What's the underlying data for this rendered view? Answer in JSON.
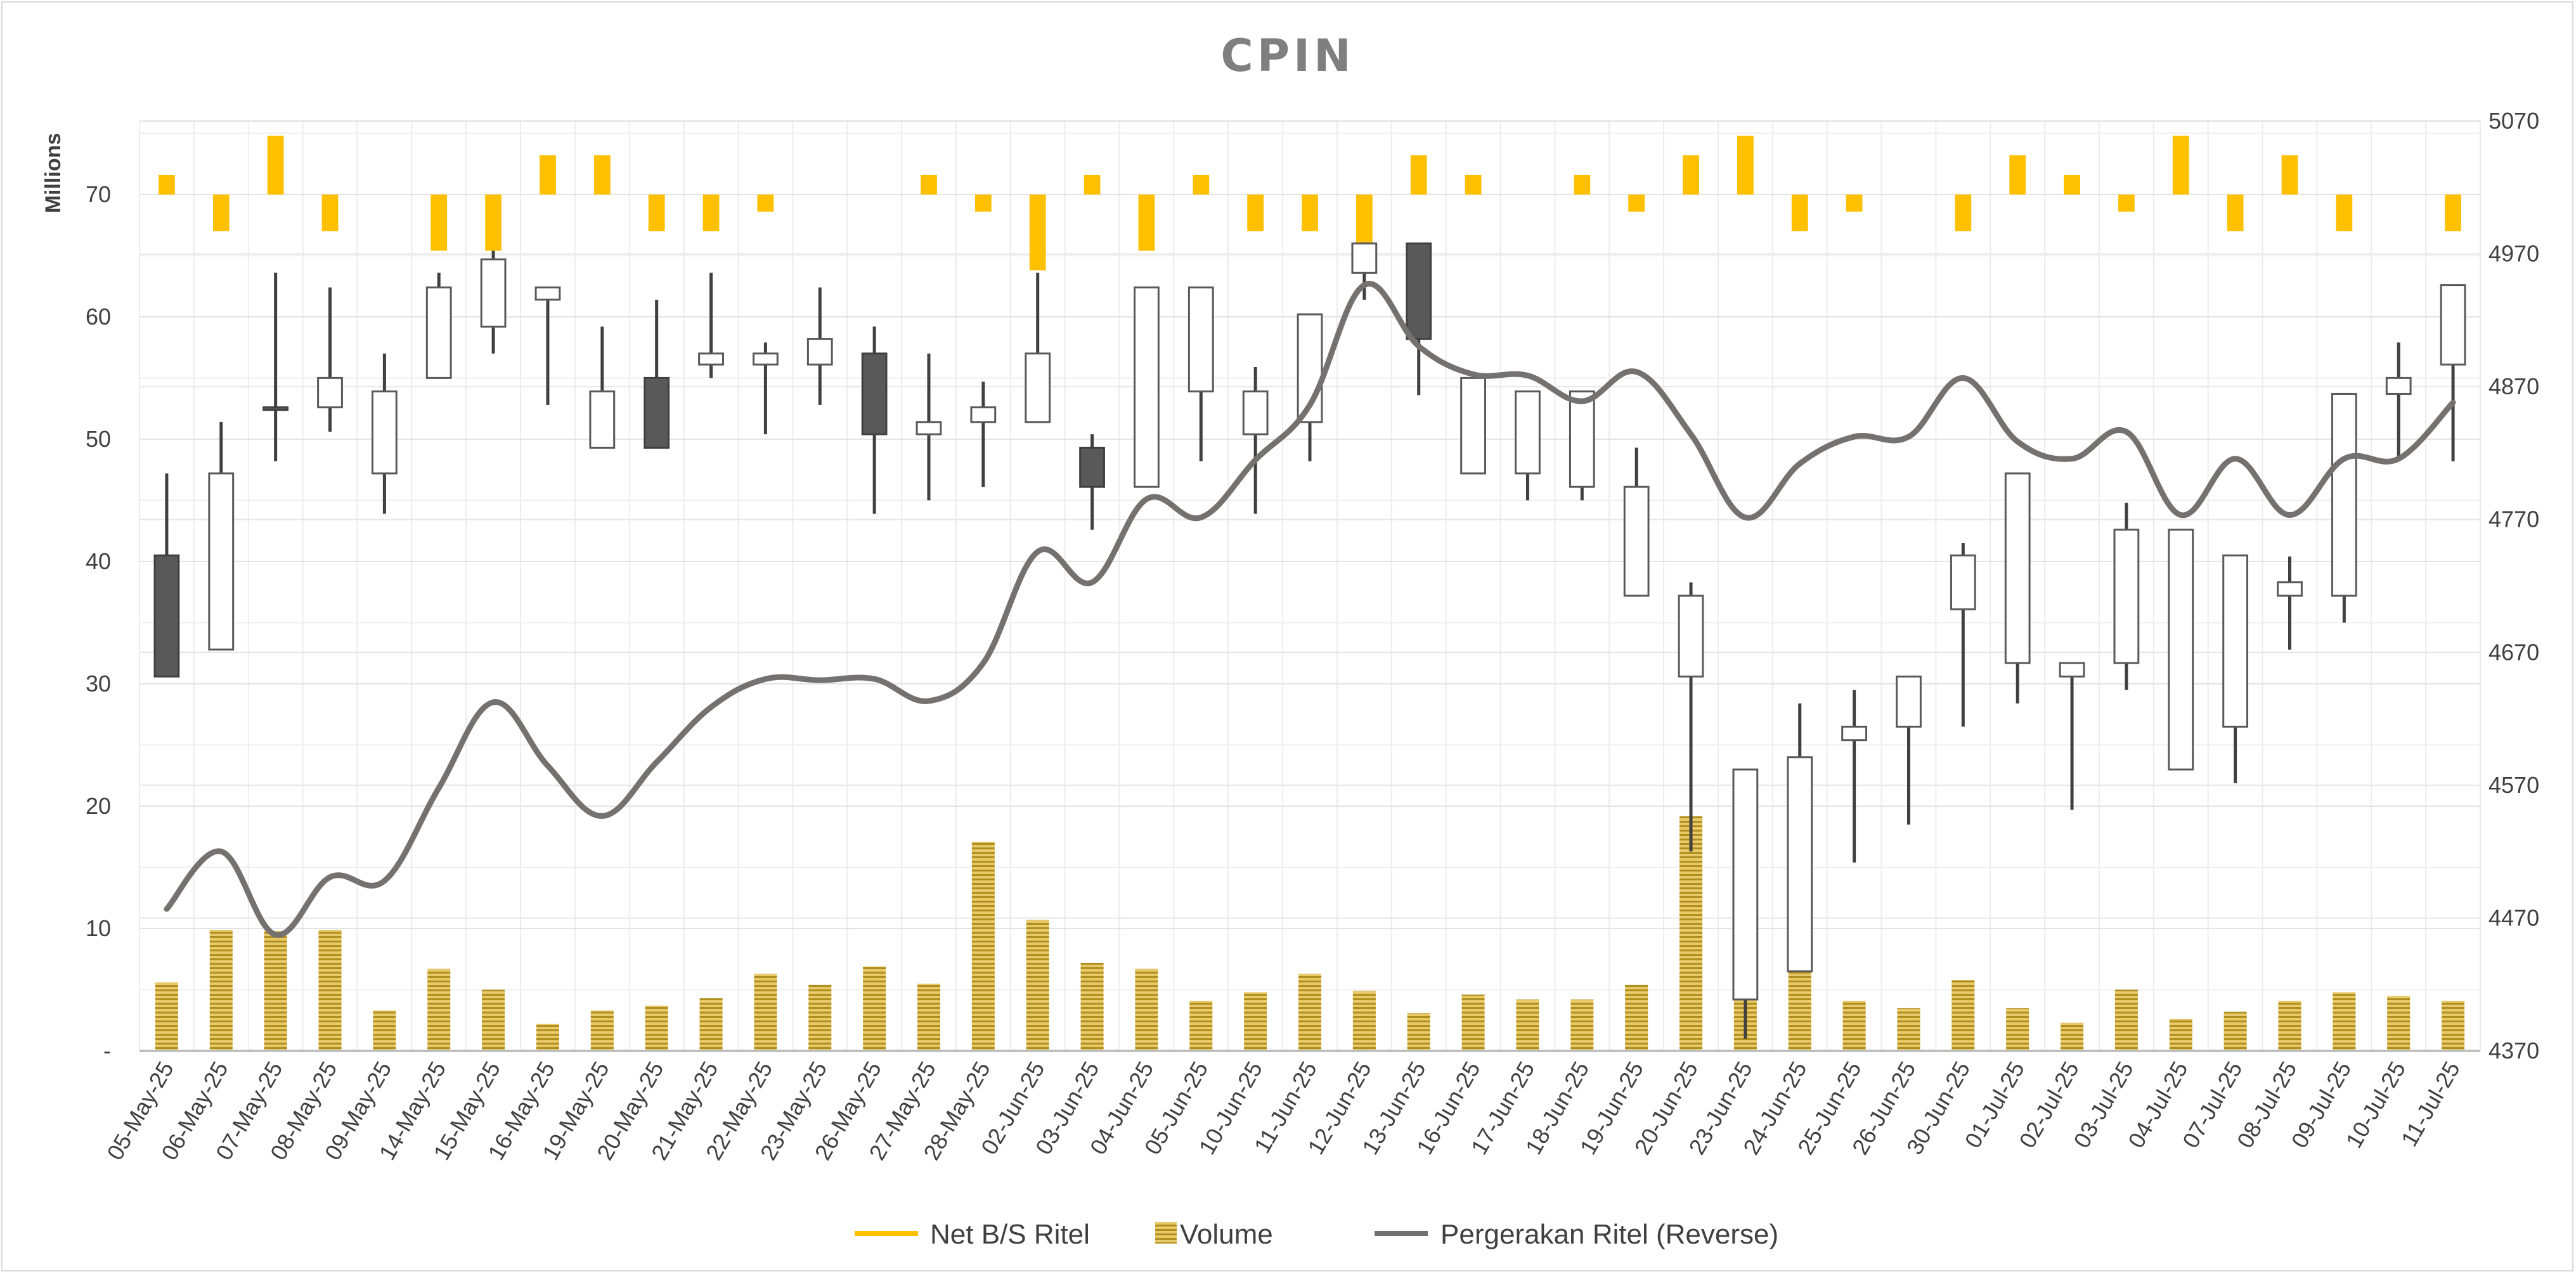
{
  "chart_data": {
    "type": "candlestick-combo",
    "title": "CPIN",
    "left_axis_unit": "Millions",
    "left_axis": {
      "min": 0,
      "max": 76,
      "ticks": [
        {
          "value": 0,
          "label": "-"
        },
        {
          "value": 10,
          "label": "10"
        },
        {
          "value": 20,
          "label": "20"
        },
        {
          "value": 30,
          "label": "30"
        },
        {
          "value": 40,
          "label": "40"
        },
        {
          "value": 50,
          "label": "50"
        },
        {
          "value": 60,
          "label": "60"
        },
        {
          "value": 70,
          "label": "70"
        }
      ]
    },
    "right_axis": {
      "min": 4370,
      "max": 5070,
      "ticks": [
        "4370",
        "4470",
        "4570",
        "4670",
        "4770",
        "4870",
        "4970",
        "5070"
      ]
    },
    "gridlines": true,
    "legend_position": "bottom",
    "colors": {
      "net_bs": "#ffc000",
      "volume": "#c9a227",
      "line": "#767171",
      "candle_down": "#595959",
      "candle_up": "#ffffff",
      "wick": "#404040"
    },
    "categories": [
      "05-May-25",
      "06-May-25",
      "07-May-25",
      "08-May-25",
      "09-May-25",
      "14-May-25",
      "15-May-25",
      "16-May-25",
      "19-May-25",
      "20-May-25",
      "21-May-25",
      "22-May-25",
      "23-May-25",
      "26-May-25",
      "27-May-25",
      "28-May-25",
      "02-Jun-25",
      "03-Jun-25",
      "04-Jun-25",
      "05-Jun-25",
      "10-Jun-25",
      "11-Jun-25",
      "12-Jun-25",
      "13-Jun-25",
      "16-Jun-25",
      "17-Jun-25",
      "18-Jun-25",
      "19-Jun-25",
      "20-Jun-25",
      "23-Jun-25",
      "24-Jun-25",
      "25-Jun-25",
      "26-Jun-25",
      "30-Jun-25",
      "01-Jul-25",
      "02-Jul-25",
      "03-Jul-25",
      "04-Jul-25",
      "07-Jul-25",
      "08-Jul-25",
      "09-Jul-25",
      "10-Jul-25",
      "11-Jul-25"
    ],
    "series": [
      {
        "name": "Net B/S Ritel",
        "type": "bar",
        "axis": "left",
        "baseline": 70,
        "values": [
          71.6,
          67,
          74.8,
          67,
          null,
          65.4,
          65.4,
          73.2,
          73.2,
          67,
          67,
          68.6,
          null,
          null,
          71.6,
          68.6,
          63.8,
          71.6,
          65.4,
          71.6,
          67,
          67,
          63.8,
          73.2,
          71.6,
          null,
          71.6,
          68.6,
          73.2,
          74.8,
          67,
          68.6,
          null,
          67,
          73.2,
          71.6,
          68.6,
          74.8,
          67,
          73.2,
          67,
          null,
          67
        ]
      },
      {
        "name": "Volume",
        "type": "bar",
        "axis": "left",
        "values": [
          5.6,
          9.9,
          9.8,
          9.9,
          3.3,
          6.7,
          5,
          2.2,
          3.3,
          3.7,
          4.3,
          6.3,
          5.4,
          6.9,
          5.5,
          17.1,
          10.7,
          7.2,
          6.7,
          4.1,
          4.8,
          6.3,
          4.9,
          3.1,
          4.6,
          4.2,
          4.2,
          5.4,
          19.2,
          4.2,
          6.5,
          4.1,
          3.5,
          5.8,
          3.5,
          2.3,
          5,
          2.6,
          3.2,
          4.1,
          4.8,
          4.5,
          4.1
        ]
      },
      {
        "name": "Pergerakan Ritel (Reverse)",
        "type": "line",
        "axis": "left",
        "smooth": true,
        "values": [
          11.6,
          16.3,
          9.5,
          14.2,
          13.9,
          21.5,
          28.5,
          23.3,
          19.2,
          23.6,
          28.1,
          30.4,
          30.3,
          30.4,
          28.6,
          31.7,
          40.8,
          38.3,
          45.1,
          43.6,
          48.3,
          52.8,
          62.6,
          57.6,
          55.3,
          55.2,
          53.1,
          55.5,
          50.4,
          43.6,
          48,
          50.2,
          50.2,
          55,
          49.8,
          48.4,
          50.6,
          43.8,
          48.4,
          43.8,
          48.4,
          48.4,
          53
        ]
      },
      {
        "name": "Price",
        "type": "candlestick",
        "axis": "left",
        "show_in_legend": false,
        "ohlc": [
          [
            40.5,
            47.2,
            30.6,
            30.6
          ],
          [
            32.8,
            51.4,
            32.8,
            47.2
          ],
          [
            52.6,
            63.6,
            48.2,
            52.6
          ],
          [
            52.6,
            62.4,
            50.6,
            55
          ],
          [
            47.2,
            57,
            43.9,
            53.9
          ],
          [
            55,
            63.6,
            55,
            62.4
          ],
          [
            59.2,
            65.4,
            57,
            64.7
          ],
          [
            61.4,
            62.4,
            52.8,
            62.4
          ],
          [
            49.3,
            59.2,
            49.3,
            53.9
          ],
          [
            55,
            61.4,
            49.3,
            49.3
          ],
          [
            56.1,
            63.6,
            55,
            57
          ],
          [
            56.1,
            57.9,
            50.4,
            57
          ],
          [
            56.1,
            62.4,
            52.8,
            58.2
          ],
          [
            57,
            59.2,
            43.9,
            50.4
          ],
          [
            50.4,
            57,
            45,
            51.4
          ],
          [
            51.4,
            54.7,
            46.1,
            52.6
          ],
          [
            51.4,
            63.6,
            51.4,
            57
          ],
          [
            49.3,
            50.4,
            42.6,
            46.1
          ],
          [
            46.1,
            62.4,
            46.1,
            62.4
          ],
          [
            53.9,
            62.4,
            48.2,
            62.4
          ],
          [
            50.4,
            55.9,
            43.9,
            53.9
          ],
          [
            51.4,
            60.2,
            48.2,
            60.2
          ],
          [
            63.6,
            66,
            61.4,
            66
          ],
          [
            66,
            66,
            53.6,
            58.2
          ],
          [
            47.2,
            55,
            47.2,
            55
          ],
          [
            47.2,
            53.9,
            45,
            53.9
          ],
          [
            46.1,
            53.9,
            45,
            53.9
          ],
          [
            37.2,
            49.3,
            37.2,
            46.1
          ],
          [
            30.6,
            38.3,
            16.3,
            37.2
          ],
          [
            4.2,
            23,
            1,
            23
          ],
          [
            6.5,
            28.4,
            6.5,
            24
          ],
          [
            25.4,
            29.5,
            15.4,
            26.5
          ],
          [
            26.5,
            30.6,
            18.5,
            30.6
          ],
          [
            36.1,
            41.5,
            26.5,
            40.5
          ],
          [
            31.7,
            47.2,
            28.4,
            47.2
          ],
          [
            30.6,
            31.7,
            19.7,
            31.7
          ],
          [
            31.7,
            44.8,
            29.5,
            42.6
          ],
          [
            23,
            42.6,
            23,
            42.6
          ],
          [
            26.5,
            40.5,
            21.9,
            40.5
          ],
          [
            37.2,
            40.4,
            32.8,
            38.3
          ],
          [
            37.2,
            53.7,
            35,
            53.7
          ],
          [
            53.7,
            57.9,
            48.2,
            55
          ],
          [
            56.1,
            62.6,
            48.2,
            62.6
          ]
        ]
      }
    ]
  },
  "legend": {
    "items": [
      "Net B/S Ritel",
      "Volume",
      "Pergerakan Ritel (Reverse)"
    ]
  }
}
